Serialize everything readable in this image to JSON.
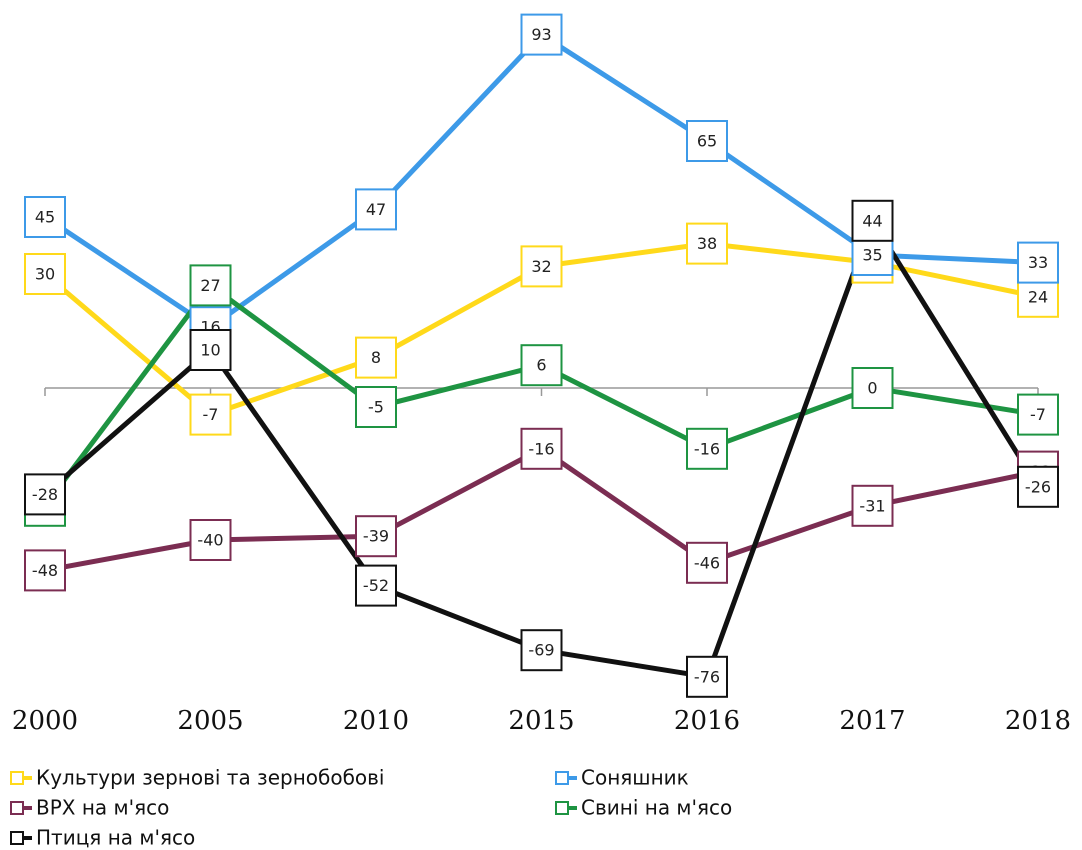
{
  "chart_data": {
    "type": "line",
    "categories": [
      "2000",
      "2005",
      "2010",
      "2015",
      "2016",
      "2017",
      "2018"
    ],
    "ylim": [
      -80,
      100
    ],
    "series": [
      {
        "name": "Культури зернові та зернобобові",
        "color": "#ffd91a",
        "values": [
          30,
          -7,
          8,
          32,
          38,
          33,
          24
        ]
      },
      {
        "name": "Соняшник",
        "color": "#3d9ae8",
        "values": [
          45,
          16,
          47,
          93,
          65,
          35,
          33
        ]
      },
      {
        "name": "ВРХ на м'ясо",
        "color": "#7b2d52",
        "values": [
          -48,
          -40,
          -39,
          -16,
          -46,
          -31,
          -22
        ]
      },
      {
        "name": "Свині на м'ясо",
        "color": "#1e9442",
        "values": [
          -31,
          27,
          -5,
          6,
          -16,
          0,
          -7
        ]
      },
      {
        "name": "Птиця на м'ясо",
        "color": "#111111",
        "values": [
          -28,
          10,
          -52,
          -69,
          -76,
          44,
          -26
        ]
      }
    ]
  }
}
